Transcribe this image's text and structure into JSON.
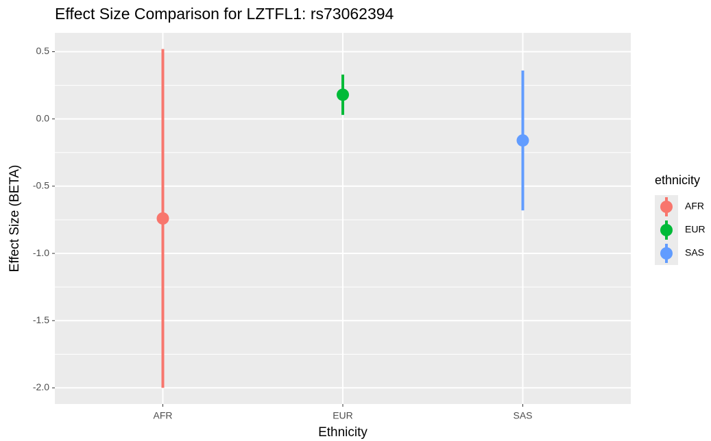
{
  "chart_data": {
    "type": "pointrange",
    "title": "Effect Size Comparison for LZTFL1: rs73062394",
    "x_label": "Ethnicity",
    "y_label": "Effect Size (BETA)",
    "categories": [
      "AFR",
      "EUR",
      "SAS"
    ],
    "values": [
      -0.74,
      0.18,
      -0.16
    ],
    "lower": [
      -2.0,
      0.03,
      -0.68
    ],
    "upper": [
      0.52,
      0.33,
      0.36
    ],
    "colors": [
      "#f8766d",
      "#00ba38",
      "#619cff"
    ],
    "ylim": [
      -2.12,
      0.64
    ],
    "yticks": [
      -2.0,
      -1.5,
      -1.0,
      -0.5,
      0.0,
      0.5
    ],
    "grid": true,
    "legend_title": "ethnicity"
  }
}
